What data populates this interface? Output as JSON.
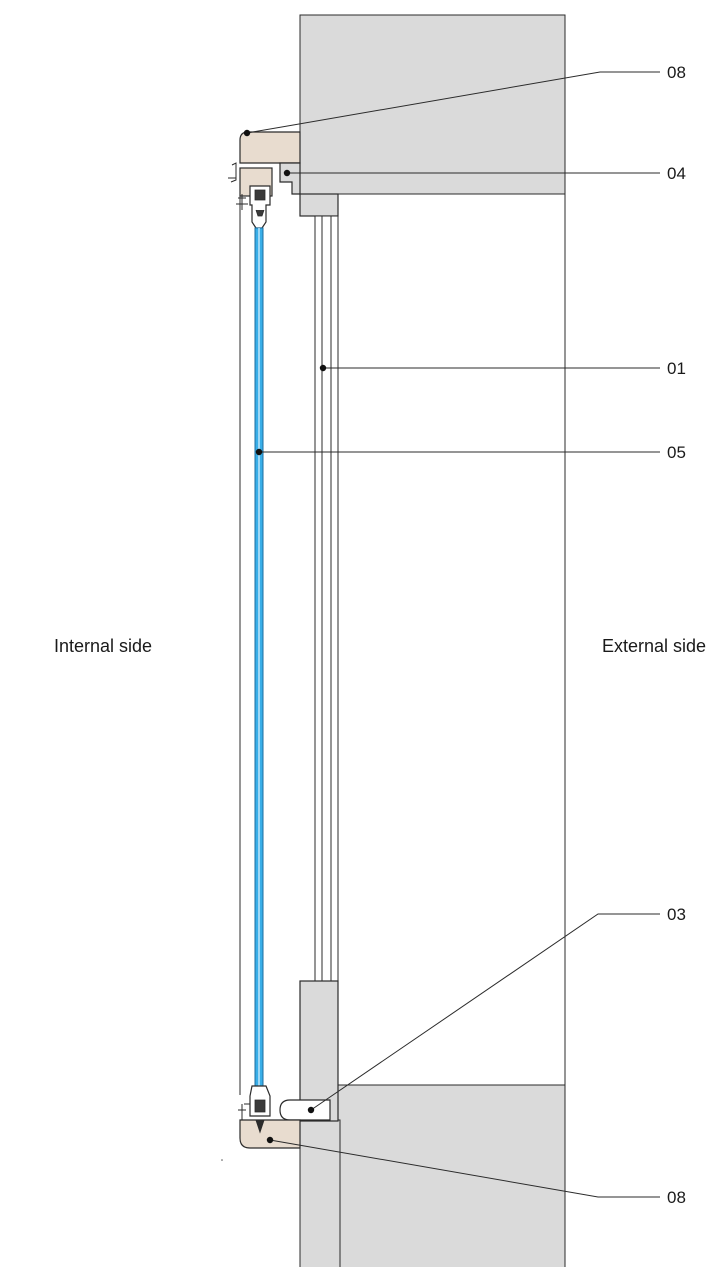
{
  "labels": {
    "internal_side": "Internal side",
    "external_side": "External side"
  },
  "callouts": [
    {
      "id": "callout-08-top",
      "label": "08"
    },
    {
      "id": "callout-04",
      "label": "04"
    },
    {
      "id": "callout-01",
      "label": "01"
    },
    {
      "id": "callout-05",
      "label": "05"
    },
    {
      "id": "callout-03",
      "label": "03"
    },
    {
      "id": "callout-08-bottom",
      "label": "08"
    }
  ],
  "colors": {
    "wall": "#dadada",
    "wall_stroke": "#2b2b2b",
    "sill_wood": "#e8dccf",
    "glass": "#39aee8",
    "glass_edge": "#1d6fa0",
    "leader": "#2b2b2b",
    "profile_fill": "#ffffff"
  }
}
